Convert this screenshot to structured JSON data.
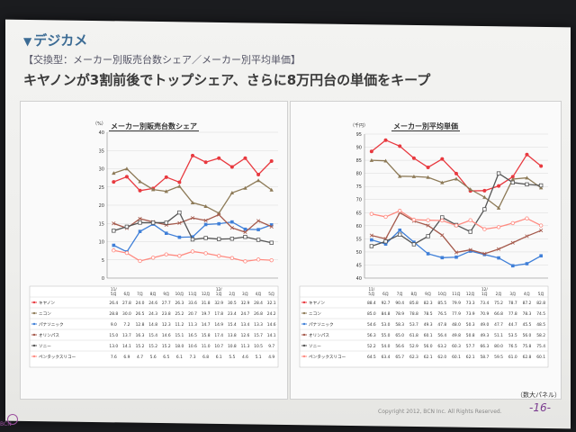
{
  "header": {
    "section": "デジカメ",
    "subtitle": "【交換型：メーカー別販売台数シェア／メーカー別平均単価】",
    "headline": "キヤノンが3割前後でトップシェア、さらに8万円台の単価をキープ"
  },
  "footer": {
    "copyright": "Copyright 2012, BCN Inc. All Rights Reserved.",
    "page": "-16-",
    "note": "（数大パネル）",
    "logo": "BCN"
  },
  "colors": {
    "canon": "#e8393f",
    "nikon": "#8d7a57",
    "panasonic": "#3f7fd8",
    "olympus": "#a55a4c",
    "sony": "#555555",
    "pentax": "#ff8a80"
  },
  "chart_data": [
    {
      "type": "line",
      "title": "メーカー別販売台数シェア",
      "yunit": "（%）",
      "ylim": [
        0,
        40
      ],
      "yticks": [
        0,
        5,
        10,
        15,
        20,
        25,
        30,
        35,
        40
      ],
      "categories": [
        "11/5月",
        "6月",
        "7月",
        "8月",
        "9月",
        "10月",
        "11月",
        "12月",
        "12/1月",
        "2月",
        "3月",
        "4月",
        "5月"
      ],
      "series": [
        {
          "name": "キヤノン",
          "color": "#e8393f",
          "marker": "circle",
          "values": [
            26.4,
            27.8,
            24.0,
            24.6,
            27.7,
            26.3,
            33.6,
            31.8,
            32.9,
            30.5,
            32.9,
            28.4,
            32.1
          ]
        },
        {
          "name": "ニコン",
          "color": "#8d7a57",
          "marker": "triangle",
          "values": [
            28.8,
            30.0,
            26.5,
            24.3,
            23.8,
            25.2,
            20.7,
            19.7,
            17.8,
            23.4,
            24.7,
            26.8,
            24.2
          ]
        },
        {
          "name": "パナソニック",
          "color": "#3f7fd8",
          "marker": "square",
          "values": [
            9.0,
            7.2,
            12.8,
            14.8,
            12.3,
            11.2,
            11.3,
            14.7,
            14.9,
            15.4,
            13.4,
            13.3,
            14.6
          ]
        },
        {
          "name": "オリンパス",
          "color": "#a55a4c",
          "marker": "x",
          "values": [
            15.0,
            13.7,
            16.3,
            15.4,
            14.6,
            15.1,
            16.5,
            15.8,
            17.4,
            13.8,
            12.6,
            15.7,
            14.1
          ]
        },
        {
          "name": "ソニー",
          "color": "#555555",
          "marker": "square-open",
          "values": [
            13.0,
            14.1,
            15.2,
            15.2,
            15.2,
            18.0,
            10.6,
            11.0,
            10.7,
            10.8,
            11.3,
            10.5,
            9.7
          ]
        },
        {
          "name": "ペンタックスリコー",
          "color": "#ff8a80",
          "marker": "circle-open",
          "values": [
            7.6,
            6.9,
            4.7,
            5.6,
            6.5,
            6.1,
            7.3,
            6.8,
            6.1,
            5.5,
            4.6,
            5.1,
            4.9
          ]
        }
      ]
    },
    {
      "type": "line",
      "title": "メーカー別平均単価",
      "yunit": "（千円）",
      "ylim": [
        40,
        95
      ],
      "yticks": [
        40,
        45,
        50,
        55,
        60,
        65,
        70,
        75,
        80,
        85,
        90,
        95
      ],
      "categories": [
        "11/5月",
        "6月",
        "7月",
        "8月",
        "9月",
        "10月",
        "11月",
        "12月",
        "12/1月",
        "2月",
        "3月",
        "4月",
        "5月"
      ],
      "series": [
        {
          "name": "キヤノン",
          "color": "#e8393f",
          "marker": "circle",
          "values": [
            88.4,
            92.7,
            90.4,
            85.8,
            82.3,
            85.5,
            79.9,
            73.3,
            73.4,
            75.2,
            78.7,
            87.2,
            82.8
          ]
        },
        {
          "name": "ニコン",
          "color": "#8d7a57",
          "marker": "triangle",
          "values": [
            85.0,
            84.8,
            78.9,
            78.8,
            78.5,
            76.5,
            77.9,
            73.9,
            70.9,
            66.8,
            77.8,
            78.3,
            74.5
          ]
        },
        {
          "name": "パナソニック",
          "color": "#3f7fd8",
          "marker": "square",
          "values": [
            54.6,
            53.0,
            58.3,
            53.7,
            49.3,
            47.8,
            48.0,
            50.3,
            49.0,
            47.7,
            44.7,
            45.5,
            48.5
          ]
        },
        {
          "name": "オリンパス",
          "color": "#a55a4c",
          "marker": "x",
          "values": [
            56.3,
            55.0,
            65.0,
            61.8,
            60.1,
            56.4,
            49.8,
            50.8,
            49.3,
            51.1,
            53.5,
            56.0,
            58.2
          ]
        },
        {
          "name": "ソニー",
          "color": "#555555",
          "marker": "square-open",
          "values": [
            52.2,
            54.0,
            56.6,
            52.9,
            56.0,
            63.2,
            60.3,
            57.7,
            66.3,
            80.0,
            76.5,
            75.8,
            75.4
          ]
        },
        {
          "name": "ペンタックスリコー",
          "color": "#ff8a80",
          "marker": "circle-open",
          "values": [
            64.5,
            63.4,
            65.7,
            62.3,
            62.1,
            62.0,
            60.1,
            62.1,
            58.7,
            59.5,
            61.0,
            62.8,
            60.1
          ]
        }
      ]
    }
  ]
}
